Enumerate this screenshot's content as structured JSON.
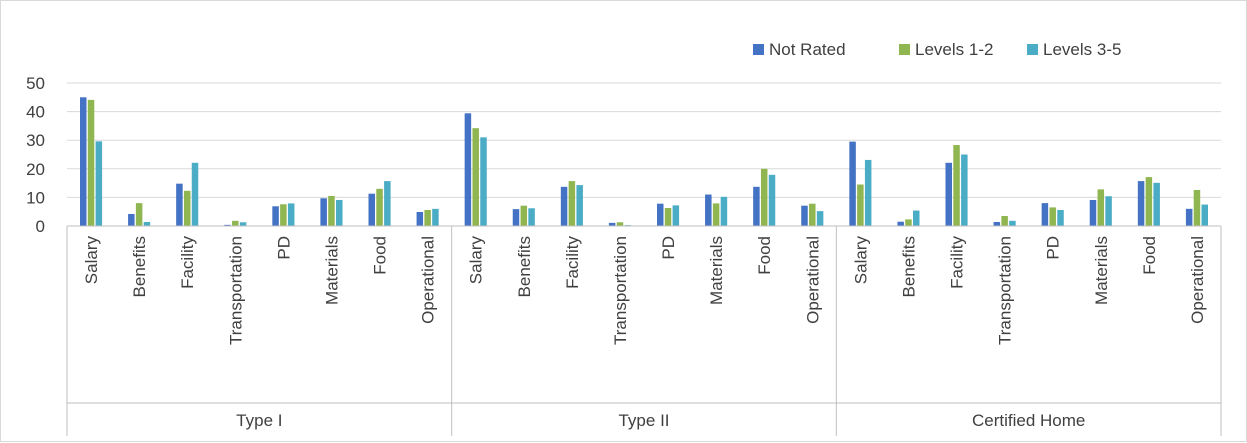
{
  "chart_data": {
    "type": "bar",
    "title": "",
    "xlabel": "",
    "ylabel": "",
    "ylim": [
      0,
      50
    ],
    "yticks": [
      0,
      10,
      20,
      30,
      40,
      50
    ],
    "grid": true,
    "legend_position": "top-right",
    "groups": [
      "Type I",
      "Type II",
      "Certified Home"
    ],
    "categories": [
      "Salary",
      "Benefits",
      "Facility",
      "Transportation",
      "PD",
      "Materials",
      "Food",
      "Operational"
    ],
    "series": [
      {
        "name": "Not Rated",
        "color": "#4472c4",
        "values": [
          [
            45,
            4.2,
            14.8,
            0.4,
            6.9,
            9.7,
            11.3,
            4.9
          ],
          [
            39.4,
            5.9,
            13.7,
            1.1,
            7.8,
            11,
            13.7,
            7.1
          ],
          [
            29.5,
            1.5,
            22.1,
            1.4,
            8,
            9.1,
            15.7,
            6
          ]
        ]
      },
      {
        "name": "Levels 1-2",
        "color": "#8fb650",
        "values": [
          [
            44.1,
            8,
            12.3,
            1.8,
            7.6,
            10.5,
            13,
            5.6
          ],
          [
            34.2,
            7.1,
            15.7,
            1.3,
            6.3,
            7.9,
            20,
            7.8
          ],
          [
            14.5,
            2.3,
            28.3,
            3.5,
            6.5,
            12.8,
            17.1,
            12.6
          ]
        ]
      },
      {
        "name": "Levels 3-5",
        "color": "#4bacc6",
        "values": [
          [
            29.6,
            1.4,
            22.1,
            1.3,
            7.9,
            9.1,
            15.7,
            6
          ],
          [
            31,
            6.2,
            14.3,
            0.3,
            7.2,
            10.2,
            17.9,
            5.2
          ],
          [
            23.1,
            5.4,
            25,
            1.8,
            5.6,
            10.4,
            15.1,
            7.5
          ]
        ]
      }
    ]
  }
}
